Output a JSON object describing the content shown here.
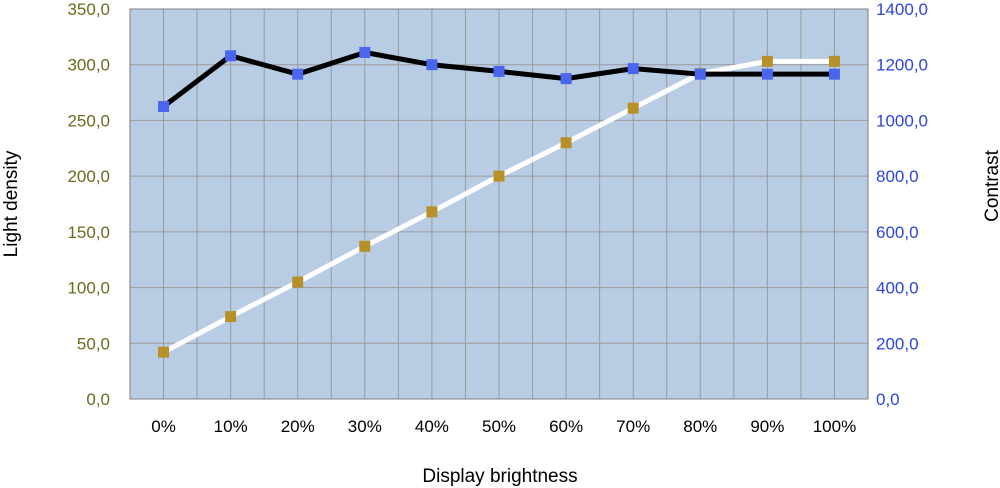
{
  "chart_data": {
    "type": "line",
    "title": "",
    "xlabel": "Display brightness",
    "ylabel_left": "Light density",
    "ylabel_right": "Contrast",
    "categories": [
      "0%",
      "10%",
      "20%",
      "30%",
      "40%",
      "50%",
      "60%",
      "70%",
      "80%",
      "90%",
      "100%"
    ],
    "y_left": {
      "ylim": [
        0,
        350
      ],
      "ticks": [
        0,
        50,
        100,
        150,
        200,
        250,
        300,
        350
      ],
      "tick_labels": [
        "0,0",
        "50,0",
        "100,0",
        "150,0",
        "200,0",
        "250,0",
        "300,0",
        "350,0"
      ]
    },
    "y_right": {
      "ylim": [
        0,
        1400
      ],
      "ticks": [
        0,
        200,
        400,
        600,
        800,
        1000,
        1200,
        1400
      ],
      "tick_labels": [
        "0,0",
        "200,0",
        "400,0",
        "600,0",
        "800,0",
        "1000,0",
        "1200,0",
        "1400,0"
      ]
    },
    "series": [
      {
        "axis": "left",
        "line_color": "#ffffff",
        "marker_color": "#b8902a",
        "values": [
          42,
          74,
          105,
          137,
          168,
          200,
          230,
          261,
          292,
          303,
          303
        ]
      },
      {
        "axis": "right",
        "line_color": "#000000",
        "marker_color": "#4a66ee",
        "values": [
          1050,
          1232,
          1166,
          1244,
          1200,
          1176,
          1150,
          1186,
          1166,
          1166,
          1166
        ]
      }
    ],
    "grid": true,
    "plot_background": "#b8cce4",
    "grid_color": "#9a9a9a",
    "legend": "none"
  }
}
